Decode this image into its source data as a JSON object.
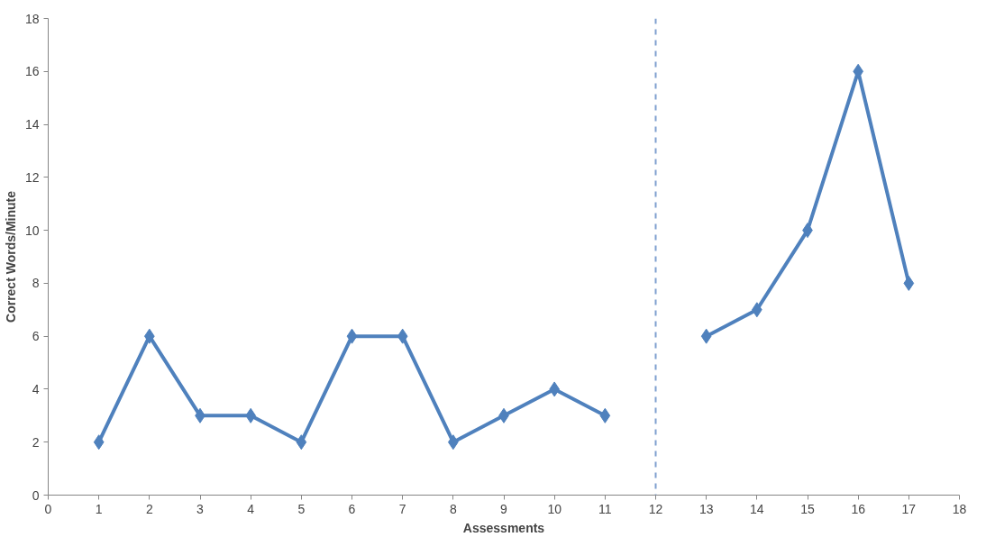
{
  "chart_data": {
    "type": "line",
    "xlabel": "Assessments",
    "ylabel": "Correct Words/Minute",
    "x": [
      1,
      2,
      3,
      4,
      5,
      6,
      7,
      8,
      9,
      10,
      11,
      12,
      13,
      14,
      15,
      16,
      17
    ],
    "series": [
      {
        "color": "#4f81bd",
        "values": [
          2,
          6,
          3,
          3,
          2,
          6,
          6,
          2,
          3,
          4,
          3,
          null,
          6,
          7,
          10,
          16,
          8
        ]
      }
    ],
    "xlim": [
      0,
      18
    ],
    "xticks": [
      0,
      1,
      2,
      3,
      4,
      5,
      6,
      7,
      8,
      9,
      10,
      11,
      12,
      13,
      14,
      15,
      16,
      17,
      18
    ],
    "ylim": [
      0,
      18
    ],
    "yticks": [
      0,
      2,
      4,
      6,
      8,
      10,
      12,
      14,
      16,
      18
    ],
    "ref_lines": [
      {
        "axis": "x",
        "value": 12,
        "color": "#7f9fcf",
        "line_style": "dashed"
      }
    ],
    "grid": false,
    "marker": "diamond",
    "line_style": "solid"
  }
}
